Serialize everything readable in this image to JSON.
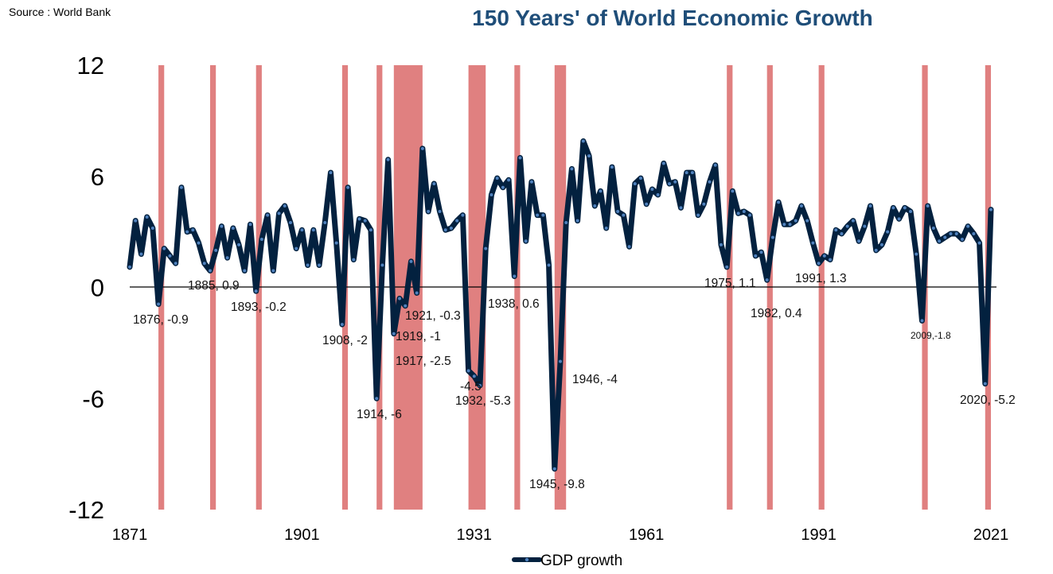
{
  "source": "Source : World Bank",
  "chart_data": {
    "type": "line",
    "title": "150 Years' of World Economic Growth",
    "xlabel": "",
    "ylabel": "",
    "xlim": [
      1871,
      2021
    ],
    "ylim": [
      -12,
      12
    ],
    "yticks": [
      "12",
      "6",
      "0",
      "-6",
      "-12"
    ],
    "ytick_values": [
      12,
      6,
      0,
      -6,
      -12
    ],
    "xticks": [
      "1871",
      "1901",
      "1931",
      "1961",
      "1991",
      "2021"
    ],
    "xtick_values": [
      1871,
      1901,
      1931,
      1961,
      1991,
      2021
    ],
    "grid": false,
    "legend": {
      "position": "bottom",
      "entries": [
        "GDP growth"
      ]
    },
    "colors": {
      "line": "#03213F",
      "marker": "#4F81BD",
      "recession": "#E08080",
      "title": "#1F4E79"
    },
    "series": [
      {
        "name": "GDP growth",
        "x_start": 1871,
        "values": [
          1.1,
          3.6,
          1.8,
          3.8,
          3.2,
          -0.9,
          2.1,
          1.7,
          1.3,
          5.4,
          3.0,
          3.1,
          2.4,
          1.3,
          0.9,
          2.0,
          3.3,
          1.6,
          3.2,
          2.3,
          0.9,
          3.4,
          -0.2,
          2.6,
          3.9,
          0.9,
          4.0,
          4.4,
          3.5,
          2.1,
          3.1,
          1.2,
          3.1,
          1.2,
          3.5,
          6.2,
          2.4,
          -2.0,
          5.4,
          1.5,
          3.7,
          3.6,
          3.1,
          -6.0,
          1.2,
          6.9,
          -2.5,
          -0.6,
          -1.0,
          1.4,
          -0.3,
          7.5,
          4.1,
          5.6,
          4.1,
          3.1,
          3.2,
          3.6,
          3.9,
          -4.5,
          -4.8,
          -5.3,
          2.1,
          5.0,
          5.9,
          5.4,
          5.8,
          0.6,
          7.0,
          2.5,
          5.7,
          3.9,
          3.9,
          1.2,
          -9.8,
          -4.0,
          3.5,
          6.4,
          3.6,
          7.9,
          7.1,
          4.4,
          5.2,
          3.2,
          6.5,
          4.1,
          3.9,
          2.2,
          5.6,
          5.9,
          4.5,
          5.3,
          5.0,
          6.7,
          5.6,
          5.7,
          4.3,
          6.2,
          6.2,
          3.9,
          4.5,
          5.7,
          6.6,
          2.3,
          1.1,
          5.2,
          4.0,
          4.1,
          3.9,
          1.7,
          1.9,
          0.4,
          2.7,
          4.6,
          3.4,
          3.4,
          3.6,
          4.4,
          3.6,
          2.4,
          1.3,
          1.7,
          1.5,
          3.1,
          2.9,
          3.3,
          3.6,
          2.5,
          3.3,
          4.4,
          2.0,
          2.3,
          3.0,
          4.3,
          3.7,
          4.3,
          4.1,
          1.8,
          -1.8,
          4.4,
          3.2,
          2.5,
          2.7,
          2.9,
          2.9,
          2.6,
          3.3,
          2.9,
          2.4,
          -5.2,
          4.2
        ]
      }
    ],
    "recessions": [
      [
        1876,
        1876
      ],
      [
        1885,
        1885
      ],
      [
        1893,
        1893
      ],
      [
        1908,
        1908
      ],
      [
        1914,
        1914
      ],
      [
        1917,
        1921
      ],
      [
        1930,
        1932
      ],
      [
        1938,
        1938
      ],
      [
        1945,
        1946
      ],
      [
        1975,
        1975
      ],
      [
        1982,
        1982
      ],
      [
        1991,
        1991
      ],
      [
        2009,
        2009
      ],
      [
        2020,
        2020
      ]
    ],
    "annotations": [
      "1876, -0.9",
      "1885, 0.9",
      "1893, -0.2",
      "1908, -2",
      "1914, -6",
      "1917, -2.5",
      "1919, -1",
      "1921, -0.3",
      "-4.5",
      "1932, -5.3",
      "1938, 0.6",
      "1945, -9.8",
      "1946, -4",
      "1975, 1.1",
      "1982, 0.4",
      "1991, 1.3",
      "2009,-1.8",
      "2020, -5.2"
    ]
  }
}
